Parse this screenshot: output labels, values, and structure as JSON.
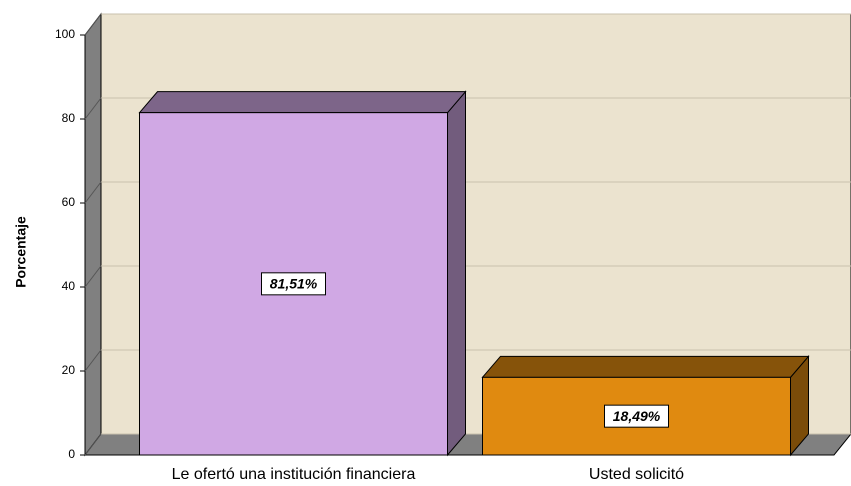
{
  "chart_data": {
    "type": "bar",
    "y_label": "Porcentaje",
    "categories": [
      "Le ofertó una institución financiera",
      "Usted solicitó"
    ],
    "values": [
      81.51,
      18.49
    ],
    "value_labels": [
      "81,51%",
      "18,49%"
    ],
    "colors": [
      "#d0a8e4",
      "#e08a10"
    ],
    "ylim": [
      0,
      100
    ],
    "yticks": [
      0,
      20,
      40,
      60,
      80,
      100
    ],
    "grid": true
  }
}
